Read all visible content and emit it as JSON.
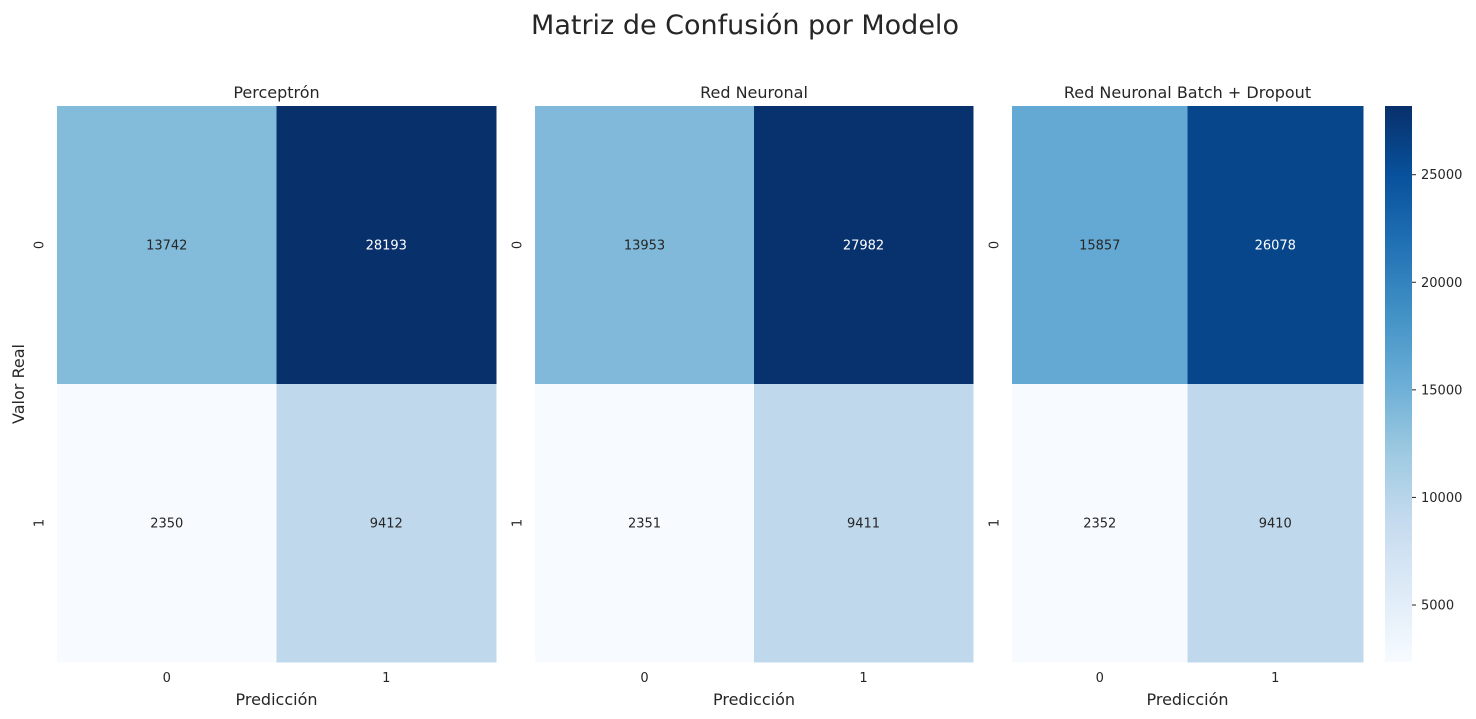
{
  "title": "Matriz de Confusión por Modelo",
  "chart_data": {
    "type": "heatmap",
    "colormap": "Blues",
    "colormap_stops": [
      "#f7fbff",
      "#deebf7",
      "#c6dbef",
      "#9ecae1",
      "#6baed6",
      "#4292c6",
      "#2171b5",
      "#08519c",
      "#08306b"
    ],
    "vmin": 2350,
    "vmax": 28193,
    "xlabel": "Predicción",
    "ylabel": "Valor Real",
    "x_categories": [
      "0",
      "1"
    ],
    "y_categories": [
      "0",
      "1"
    ],
    "panels": [
      {
        "title": "Perceptrón",
        "matrix": [
          [
            13742,
            28193
          ],
          [
            2350,
            9412
          ]
        ]
      },
      {
        "title": "Red Neuronal",
        "matrix": [
          [
            13953,
            27982
          ],
          [
            2351,
            9411
          ]
        ]
      },
      {
        "title": "Red Neuronal Batch + Dropout",
        "matrix": [
          [
            15857,
            26078
          ],
          [
            2352,
            9410
          ]
        ]
      }
    ],
    "colorbar": {
      "ticks": [
        5000,
        10000,
        15000,
        20000,
        25000
      ],
      "tick_labels": [
        "5000",
        "10000",
        "15000",
        "20000",
        "25000"
      ]
    }
  }
}
